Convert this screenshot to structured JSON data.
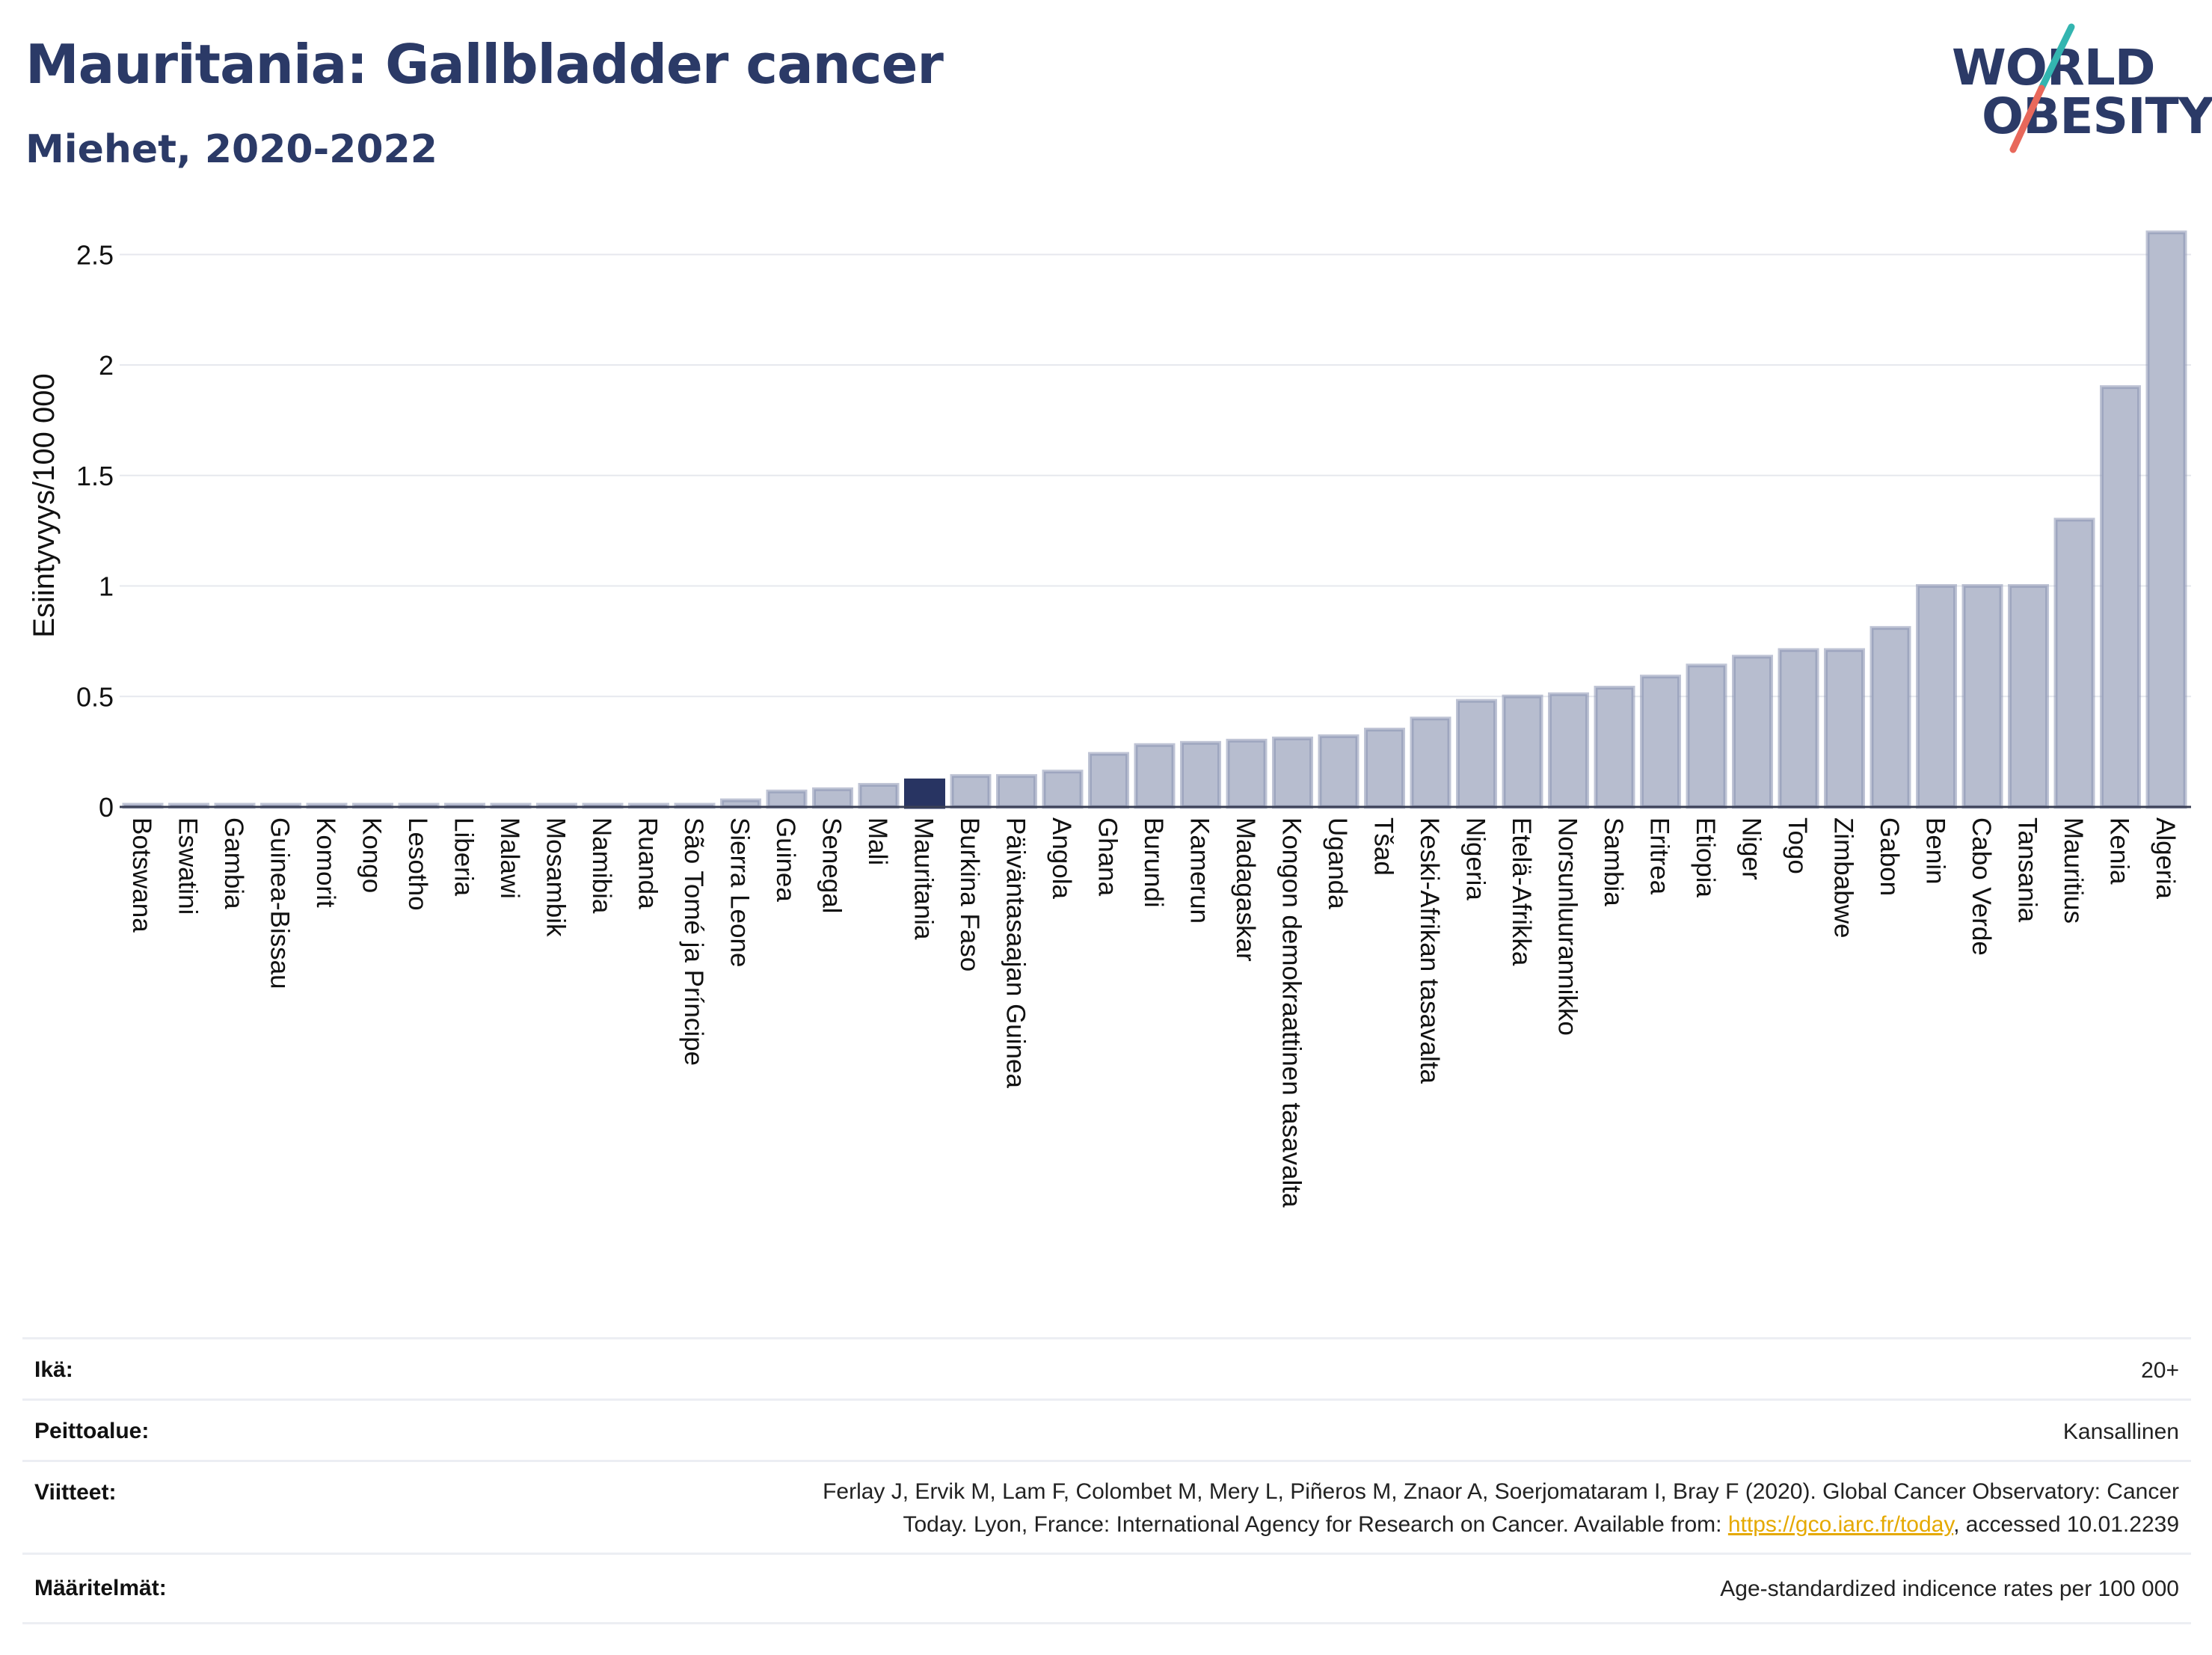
{
  "header": {
    "title": "Mauritania: Gallbladder cancer",
    "subtitle": "Miehet, 2020-2022"
  },
  "logo": {
    "line1": "WORLD",
    "line2": "OBESITY"
  },
  "colors": {
    "bar": "#b7bdcf",
    "bar_border": "#8b93b2",
    "highlight": "#283462",
    "grid": "#e6e8ee",
    "title": "#2b3a67"
  },
  "chart_data": {
    "type": "bar",
    "ylabel": "Esiintyvyys/100 000",
    "xlabel": "",
    "ylim": [
      0,
      2.65
    ],
    "yticks": [
      0,
      0.5,
      1,
      1.5,
      2,
      2.5
    ],
    "ytick_labels": [
      "0",
      "0.5",
      "1",
      "1.5",
      "2",
      "2.5"
    ],
    "highlight": "Mauritania",
    "grid": true,
    "categories": [
      "Botswana",
      "Eswatini",
      "Gambia",
      "Guinea-Bissau",
      "Komorit",
      "Kongo",
      "Lesotho",
      "Liberia",
      "Malawi",
      "Mosambik",
      "Namibia",
      "Ruanda",
      "São Tomé ja Príncipe",
      "Sierra Leone",
      "Guinea",
      "Senegal",
      "Mali",
      "Mauritania",
      "Burkina Faso",
      "Päiväntasaajan Guinea",
      "Angola",
      "Ghana",
      "Burundi",
      "Kamerun",
      "Madagaskar",
      "Kongon demokraattinen tasavalta",
      "Uganda",
      "Tšad",
      "Keski-Afrikan tasavalta",
      "Nigeria",
      "Etelä-Afrikka",
      "Norsunluurannikko",
      "Sambia",
      "Eritrea",
      "Etiopia",
      "Niger",
      "Togo",
      "Zimbabwe",
      "Gabon",
      "Benin",
      "Cabo Verde",
      "Tansania",
      "Mauritius",
      "Kenia",
      "Algeria"
    ],
    "values": [
      0.01,
      0.01,
      0.01,
      0.01,
      0.01,
      0.01,
      0.01,
      0.01,
      0.01,
      0.01,
      0.01,
      0.01,
      0.01,
      0.03,
      0.07,
      0.08,
      0.1,
      0.12,
      0.14,
      0.14,
      0.16,
      0.24,
      0.28,
      0.29,
      0.3,
      0.31,
      0.32,
      0.35,
      0.4,
      0.48,
      0.5,
      0.51,
      0.54,
      0.59,
      0.64,
      0.68,
      0.71,
      0.71,
      0.81,
      1.0,
      1.0,
      1.0,
      1.3,
      1.9,
      2.6
    ]
  },
  "meta": {
    "age_label": "Ikä:",
    "age_value": "20+",
    "coverage_label": "Peittoalue:",
    "coverage_value": "Kansallinen",
    "refs_label": "Viitteet:",
    "refs_line1": "Ferlay J, Ervik M, Lam F, Colombet M, Mery L, Piñeros M, Znaor A, Soerjomataram I, Bray F (2020). Global Cancer Observatory: Cancer",
    "refs_line2_pre": "Today. Lyon, France: International Agency for Research on Cancer. Available from: ",
    "refs_link": "https://gco.iarc.fr/today",
    "refs_line2_post": ", accessed 10.01.2239",
    "defs_label": "Määritelmät:",
    "defs_value": "Age-standardized indicence rates per 100 000"
  }
}
